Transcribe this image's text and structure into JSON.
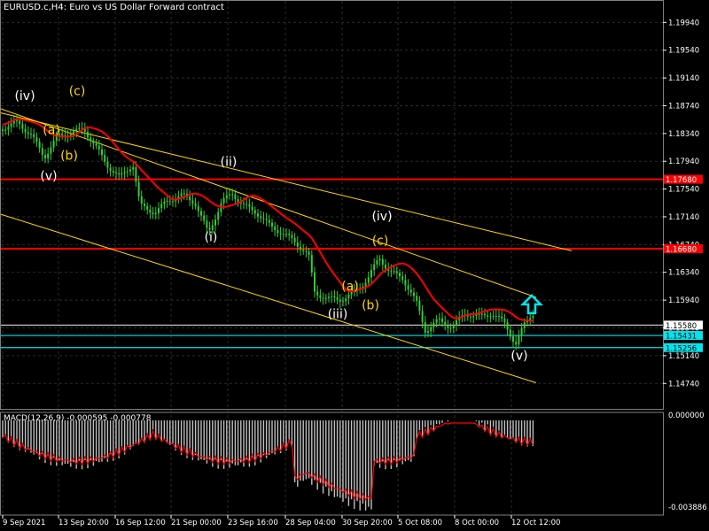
{
  "header": {
    "symbol": "EURUSD.c,H4:",
    "description": "Euro vs US Dollar Forward contract"
  },
  "macd_header": "MACD(12,26,9) -0.000595 -0.000778",
  "chart_data": {
    "type": "candlestick",
    "price_axis": {
      "range": [
        1.1445,
        1.2011
      ],
      "ticks": [
        "1.19940",
        "1.19540",
        "1.19140",
        "1.18740",
        "1.18340",
        "1.17940",
        "1.17540",
        "1.17140",
        "1.16740",
        "1.16340",
        "1.15940",
        "1.15540",
        "1.15140",
        "1.14740"
      ]
    },
    "time_axis": {
      "labels": [
        "9 Sep 2021",
        "13 Sep 20:00",
        "16 Sep 12:00",
        "21 Sep 00:00",
        "23 Sep 16:00",
        "28 Sep 04:00",
        "30 Sep 20:00",
        "5 Oct 08:00",
        "8 Oct 00:00",
        "12 Oct 12:00"
      ]
    },
    "price_tags": [
      {
        "text": "1.17680",
        "color": "#ff0000"
      },
      {
        "text": "1.16680",
        "color": "#ff0000"
      },
      {
        "text": "1.15580",
        "color": "#ffffff"
      },
      {
        "text": "1.15431",
        "color": "#00e5ee"
      },
      {
        "text": "1.15256",
        "color": "#00e5ee"
      }
    ],
    "horizontal_levels": [
      {
        "price": 1.1768,
        "color": "#ff0000"
      },
      {
        "price": 1.1668,
        "color": "#ff0000"
      },
      {
        "price": 1.1558,
        "color": "#c0c0c0"
      },
      {
        "price": 1.15431,
        "color": "#00e5ee"
      },
      {
        "price": 1.15256,
        "color": "#00e5ee"
      }
    ],
    "wave_labels": [
      {
        "text": "(iv)",
        "color": "#ffffff"
      },
      {
        "text": "(c)",
        "color": "#ffd700"
      },
      {
        "text": "(a)",
        "color": "#ffd700"
      },
      {
        "text": "(b)",
        "color": "#ffd700"
      },
      {
        "text": "(v)",
        "color": "#ffffff"
      },
      {
        "text": "(ii)",
        "color": "#ffffff"
      },
      {
        "text": "(i)",
        "color": "#ffffff"
      },
      {
        "text": "(iv)",
        "color": "#ffffff"
      },
      {
        "text": "(c)",
        "color": "#ffd700"
      },
      {
        "text": "(a)",
        "color": "#ffd700"
      },
      {
        "text": "(b)",
        "color": "#ffd700"
      },
      {
        "text": "(iii)",
        "color": "#ffffff"
      },
      {
        "text": "(v)",
        "color": "#ffffff"
      }
    ],
    "macd_axis": {
      "top_label": "0.000000",
      "bottom_label": "-0.003886"
    },
    "colors": {
      "candles": "#32cd32",
      "moving_average": "#ff0000",
      "trendlines": "#ffd700",
      "grid": "#2a2a2a",
      "macd_histogram": "#c0c0c0",
      "macd_signal": "#ff0000",
      "arrow": "#00e5ee"
    }
  }
}
